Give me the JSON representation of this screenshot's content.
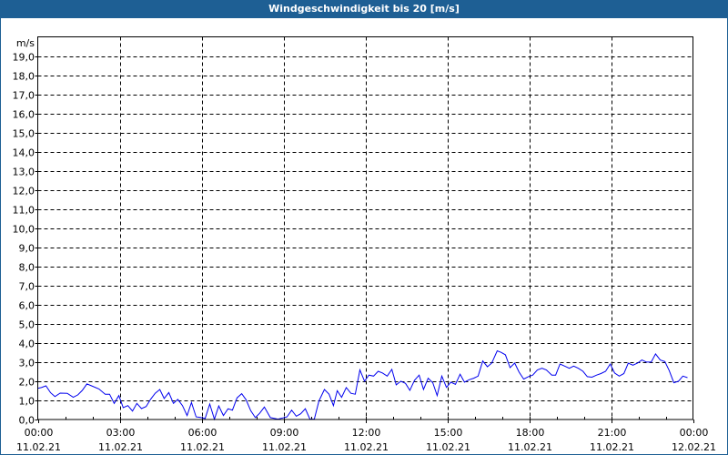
{
  "title": "Windgeschwindigkeit bis 20 [m/s]",
  "chart_data": {
    "type": "line",
    "title": "Windgeschwindigkeit bis 20 [m/s]",
    "ylabel": "m/s",
    "xlabel": "",
    "ylim": [
      0,
      20
    ],
    "xlim_hours": [
      0,
      24
    ],
    "grid": true,
    "y_ticks": [
      "0,0",
      "1,0",
      "2,0",
      "3,0",
      "4,0",
      "5,0",
      "6,0",
      "7,0",
      "8,0",
      "9,0",
      "10,0",
      "11,0",
      "12,0",
      "13,0",
      "14,0",
      "15,0",
      "16,0",
      "17,0",
      "18,0",
      "19,0"
    ],
    "x_ticks": [
      {
        "time": "00:00",
        "date": "11.02.21"
      },
      {
        "time": "03:00",
        "date": "11.02.21"
      },
      {
        "time": "06:00",
        "date": "11.02.21"
      },
      {
        "time": "09:00",
        "date": "11.02.21"
      },
      {
        "time": "12:00",
        "date": "11.02.21"
      },
      {
        "time": "15:00",
        "date": "11.02.21"
      },
      {
        "time": "18:00",
        "date": "11.02.21"
      },
      {
        "time": "21:00",
        "date": "11.02.21"
      },
      {
        "time": "00:00",
        "date": "12.02.21"
      }
    ],
    "series": [
      {
        "name": "Windgeschwindigkeit",
        "color": "#0000ee",
        "points": [
          [
            0,
            1.63
          ],
          [
            0.13,
            1.67
          ],
          [
            0.3,
            1.76
          ],
          [
            0.47,
            1.4
          ],
          [
            0.63,
            1.2
          ],
          [
            0.82,
            1.38
          ],
          [
            1.08,
            1.37
          ],
          [
            1.3,
            1.16
          ],
          [
            1.47,
            1.29
          ],
          [
            1.63,
            1.52
          ],
          [
            1.8,
            1.86
          ],
          [
            1.97,
            1.76
          ],
          [
            2.24,
            1.6
          ],
          [
            2.47,
            1.32
          ],
          [
            2.63,
            1.32
          ],
          [
            2.8,
            0.84
          ],
          [
            2.97,
            1.25
          ],
          [
            3.13,
            0.62
          ],
          [
            3.3,
            0.73
          ],
          [
            3.47,
            0.44
          ],
          [
            3.63,
            0.84
          ],
          [
            3.8,
            0.57
          ],
          [
            3.97,
            0.68
          ],
          [
            4.13,
            1.05
          ],
          [
            4.3,
            1.37
          ],
          [
            4.47,
            1.57
          ],
          [
            4.63,
            1.1
          ],
          [
            4.8,
            1.41
          ],
          [
            4.97,
            0.84
          ],
          [
            5.13,
            1.05
          ],
          [
            5.3,
            0.73
          ],
          [
            5.47,
            0.21
          ],
          [
            5.63,
            0.89
          ],
          [
            5.8,
            0.14
          ],
          [
            5.97,
            0.11
          ],
          [
            6.13,
            0.05
          ],
          [
            6.3,
            0.81
          ],
          [
            6.47,
            0.02
          ],
          [
            6.63,
            0.71
          ],
          [
            6.8,
            0.21
          ],
          [
            6.97,
            0.56
          ],
          [
            7.13,
            0.49
          ],
          [
            7.3,
            1.13
          ],
          [
            7.47,
            1.35
          ],
          [
            7.63,
            1.03
          ],
          [
            7.8,
            0.46
          ],
          [
            7.97,
            0.1
          ],
          [
            8.13,
            0.33
          ],
          [
            8.3,
            0.65
          ],
          [
            8.52,
            0.1
          ],
          [
            8.8,
            0.02
          ],
          [
            8.97,
            0.08
          ],
          [
            9.13,
            0.14
          ],
          [
            9.3,
            0.49
          ],
          [
            9.47,
            0.17
          ],
          [
            9.63,
            0.3
          ],
          [
            9.8,
            0.56
          ],
          [
            9.97,
            0.02
          ],
          [
            10.13,
            0.02
          ],
          [
            10.3,
            0.97
          ],
          [
            10.5,
            1.57
          ],
          [
            10.67,
            1.32
          ],
          [
            10.83,
            0.73
          ],
          [
            10.97,
            1.51
          ],
          [
            11.13,
            1.16
          ],
          [
            11.3,
            1.67
          ],
          [
            11.47,
            1.37
          ],
          [
            11.63,
            1.32
          ],
          [
            11.8,
            2.59
          ],
          [
            11.97,
            2.0
          ],
          [
            12.13,
            2.32
          ],
          [
            12.3,
            2.27
          ],
          [
            12.47,
            2.52
          ],
          [
            12.63,
            2.43
          ],
          [
            12.8,
            2.27
          ],
          [
            12.97,
            2.62
          ],
          [
            13.13,
            1.81
          ],
          [
            13.3,
            2.0
          ],
          [
            13.47,
            1.89
          ],
          [
            13.63,
            1.52
          ],
          [
            13.8,
            2.05
          ],
          [
            13.97,
            2.32
          ],
          [
            14.13,
            1.57
          ],
          [
            14.3,
            2.16
          ],
          [
            14.47,
            1.92
          ],
          [
            14.63,
            1.25
          ],
          [
            14.8,
            2.27
          ],
          [
            14.97,
            1.68
          ],
          [
            15.13,
            1.95
          ],
          [
            15.3,
            1.84
          ],
          [
            15.47,
            2.37
          ],
          [
            15.63,
            1.95
          ],
          [
            15.8,
            2.08
          ],
          [
            15.97,
            2.16
          ],
          [
            16.13,
            2.27
          ],
          [
            16.3,
            3.06
          ],
          [
            16.47,
            2.76
          ],
          [
            16.63,
            2.95
          ],
          [
            16.83,
            3.59
          ],
          [
            16.97,
            3.51
          ],
          [
            17.13,
            3.38
          ],
          [
            17.3,
            2.71
          ],
          [
            17.47,
            2.95
          ],
          [
            17.63,
            2.48
          ],
          [
            17.8,
            2.11
          ],
          [
            17.97,
            2.24
          ],
          [
            18.13,
            2.32
          ],
          [
            18.3,
            2.59
          ],
          [
            18.47,
            2.68
          ],
          [
            18.63,
            2.59
          ],
          [
            18.83,
            2.32
          ],
          [
            18.97,
            2.32
          ],
          [
            19.13,
            2.9
          ],
          [
            19.3,
            2.79
          ],
          [
            19.47,
            2.68
          ],
          [
            19.63,
            2.79
          ],
          [
            19.8,
            2.68
          ],
          [
            19.97,
            2.52
          ],
          [
            20.13,
            2.24
          ],
          [
            20.3,
            2.21
          ],
          [
            20.47,
            2.32
          ],
          [
            20.63,
            2.4
          ],
          [
            20.8,
            2.52
          ],
          [
            20.97,
            2.9
          ],
          [
            21.13,
            2.43
          ],
          [
            21.3,
            2.27
          ],
          [
            21.47,
            2.4
          ],
          [
            21.63,
            2.95
          ],
          [
            21.8,
            2.84
          ],
          [
            21.97,
            2.95
          ],
          [
            22.13,
            3.11
          ],
          [
            22.3,
            3.0
          ],
          [
            22.47,
            3.0
          ],
          [
            22.63,
            3.43
          ],
          [
            22.8,
            3.11
          ],
          [
            22.97,
            3.03
          ],
          [
            23.13,
            2.56
          ],
          [
            23.3,
            1.92
          ],
          [
            23.47,
            2.0
          ],
          [
            23.63,
            2.27
          ],
          [
            23.8,
            2.19
          ]
        ]
      }
    ]
  }
}
